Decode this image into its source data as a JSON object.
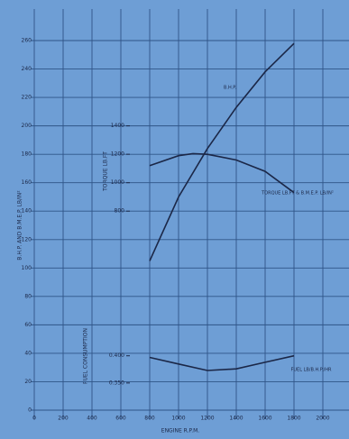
{
  "chart_data": {
    "type": "line",
    "ylabel": "B.H.P. AND B.M.E.P. LB/IN²",
    "y2label": "TORQUE LB.FT",
    "y3label": "FUEL CONSUMPTION",
    "xlabel": "ENGINE R.P.M.",
    "xlim": [
      0,
      2100
    ],
    "xticks": [
      0,
      200,
      400,
      600,
      800,
      1000,
      1200,
      1400,
      1600,
      1800,
      2000
    ],
    "ylim": [
      0,
      260
    ],
    "yticks": [
      0,
      20,
      40,
      60,
      80,
      100,
      120,
      140,
      160,
      180,
      200,
      220,
      240,
      260
    ],
    "y2lim": [
      -600,
      2000
    ],
    "y2ticks": [
      800,
      1000,
      1200,
      1400
    ],
    "y3lim": [
      0.3,
      0.98
    ],
    "y3ticks": [
      {
        "value": 0.35,
        "label": "0.350"
      },
      {
        "value": 0.4,
        "label": "0.400"
      }
    ],
    "grid": true,
    "series": [
      {
        "name": "B.H.P.",
        "color": "#1b2747",
        "x": [
          800,
          1000,
          1200,
          1400,
          1600,
          1800
        ],
        "values": [
          105,
          150,
          184,
          213,
          238,
          258
        ]
      },
      {
        "name": "TORQUE LB.FT & B.M.E.P. LB/IN²",
        "color": "#1b2747",
        "axis": "y2",
        "x": [
          800,
          1000,
          1100,
          1200,
          1400,
          1600,
          1800
        ],
        "values": [
          1120,
          1190,
          1205,
          1200,
          1160,
          1080,
          930
        ]
      },
      {
        "name": "FUEL LB/B.H.P./HR",
        "color": "#1b2747",
        "axis": "y3",
        "x": [
          800,
          1000,
          1200,
          1400,
          1600,
          1800
        ],
        "values": [
          0.397,
          0.385,
          0.373,
          0.376,
          0.388,
          0.4
        ]
      }
    ]
  }
}
